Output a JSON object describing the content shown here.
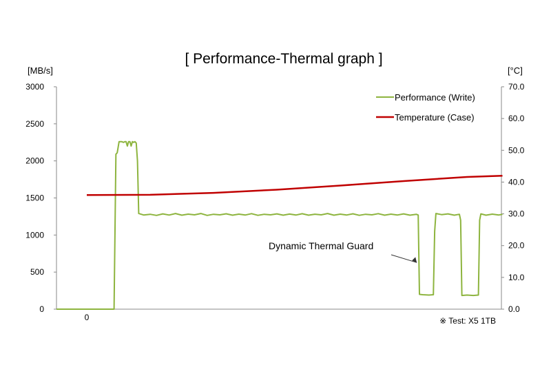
{
  "chart_data": {
    "type": "line",
    "title": "[ Performance-Thermal graph ]",
    "y_left_unit": "[MB/s]",
    "y_right_unit": "[°C]",
    "ylim_left": [
      0,
      3000
    ],
    "ylim_right": [
      0,
      70
    ],
    "y_left_ticks": [
      "0",
      "500",
      "1000",
      "1500",
      "2000",
      "2500",
      "3000"
    ],
    "y_right_ticks": [
      "0.0",
      "10.0",
      "20.0",
      "30.0",
      "40.0",
      "50.0",
      "60.0",
      "70.0"
    ],
    "x_tick_labels": [
      "0"
    ],
    "grid": false,
    "legend_position": "top-right",
    "series": [
      {
        "name": "Performance (Write)",
        "axis": "left",
        "color": "#8db43e",
        "points": [
          [
            0,
            0
          ],
          [
            43,
            0
          ],
          [
            46,
            2090
          ],
          [
            48,
            2110
          ],
          [
            51,
            2260
          ],
          [
            55,
            2260
          ],
          [
            58,
            2250
          ],
          [
            60,
            2260
          ],
          [
            62,
            2260
          ],
          [
            64,
            2200
          ],
          [
            66,
            2260
          ],
          [
            68,
            2260
          ],
          [
            70,
            2200
          ],
          [
            72,
            2260
          ],
          [
            74,
            2250
          ],
          [
            76,
            2260
          ],
          [
            78,
            2240
          ],
          [
            80,
            2000
          ],
          [
            82,
            1290
          ],
          [
            90,
            1270
          ],
          [
            100,
            1280
          ],
          [
            110,
            1265
          ],
          [
            120,
            1285
          ],
          [
            130,
            1270
          ],
          [
            140,
            1290
          ],
          [
            150,
            1268
          ],
          [
            160,
            1282
          ],
          [
            170,
            1272
          ],
          [
            180,
            1290
          ],
          [
            190,
            1265
          ],
          [
            200,
            1280
          ],
          [
            210,
            1272
          ],
          [
            220,
            1286
          ],
          [
            230,
            1268
          ],
          [
            240,
            1282
          ],
          [
            250,
            1270
          ],
          [
            260,
            1288
          ],
          [
            270,
            1266
          ],
          [
            280,
            1280
          ],
          [
            290,
            1272
          ],
          [
            300,
            1285
          ],
          [
            310,
            1268
          ],
          [
            320,
            1283
          ],
          [
            330,
            1270
          ],
          [
            340,
            1287
          ],
          [
            350,
            1268
          ],
          [
            360,
            1281
          ],
          [
            370,
            1272
          ],
          [
            380,
            1290
          ],
          [
            390,
            1268
          ],
          [
            400,
            1282
          ],
          [
            410,
            1270
          ],
          [
            420,
            1286
          ],
          [
            430,
            1266
          ],
          [
            440,
            1280
          ],
          [
            450,
            1272
          ],
          [
            460,
            1288
          ],
          [
            470,
            1268
          ],
          [
            480,
            1282
          ],
          [
            490,
            1270
          ],
          [
            500,
            1285
          ],
          [
            510,
            1268
          ],
          [
            520,
            1280
          ],
          [
            523,
            1270
          ],
          [
            525,
            200
          ],
          [
            530,
            195
          ],
          [
            540,
            190
          ],
          [
            547,
            195
          ],
          [
            549,
            1050
          ],
          [
            551,
            1290
          ],
          [
            560,
            1275
          ],
          [
            570,
            1285
          ],
          [
            580,
            1268
          ],
          [
            588,
            1280
          ],
          [
            590,
            1200
          ],
          [
            592,
            185
          ],
          [
            600,
            190
          ],
          [
            610,
            185
          ],
          [
            618,
            190
          ],
          [
            620,
            1200
          ],
          [
            622,
            1285
          ],
          [
            630,
            1268
          ],
          [
            640,
            1282
          ],
          [
            650,
            1270
          ],
          [
            656,
            1280
          ]
        ]
      },
      {
        "name": "Temperature (Case)",
        "axis": "right",
        "color": "#c00000",
        "points": [
          [
            0,
            35.9
          ],
          [
            100,
            36.0
          ],
          [
            200,
            36.6
          ],
          [
            300,
            37.6
          ],
          [
            400,
            38.9
          ],
          [
            500,
            40.3
          ],
          [
            600,
            41.6
          ],
          [
            656,
            42.0
          ]
        ]
      }
    ],
    "annotations": [
      {
        "text": "Dynamic Thermal Guard",
        "target_x": 523,
        "target_y": 1000
      }
    ],
    "note": "※ Test: X5 1TB"
  }
}
